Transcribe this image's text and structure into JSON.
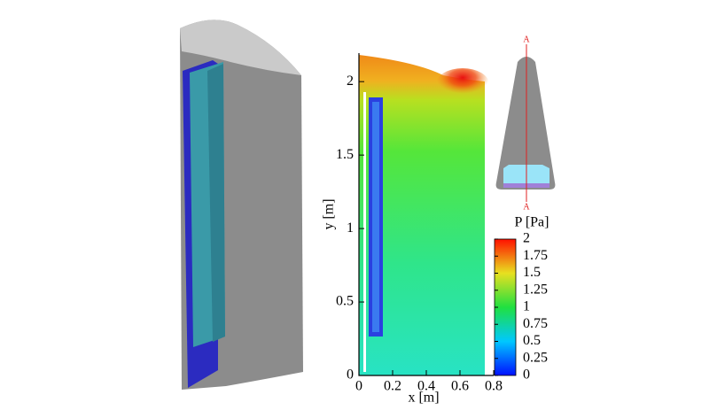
{
  "chart_data": {
    "type": "contour",
    "xlabel": "x [m]",
    "ylabel": "y [m]",
    "xlim": [
      0,
      0.8
    ],
    "xticks": [
      0,
      0.2,
      0.4,
      0.6,
      0.8
    ],
    "ylim": [
      0,
      2.2
    ],
    "yticks": [
      0,
      0.5,
      1,
      1.5,
      2
    ],
    "colorbar": {
      "label": "P [Pa]",
      "lim": [
        0,
        2
      ],
      "ticks": [
        0,
        0.25,
        0.5,
        0.75,
        1,
        1.25,
        1.5,
        1.75,
        2
      ]
    },
    "section_labels": [
      "A",
      "A"
    ]
  }
}
